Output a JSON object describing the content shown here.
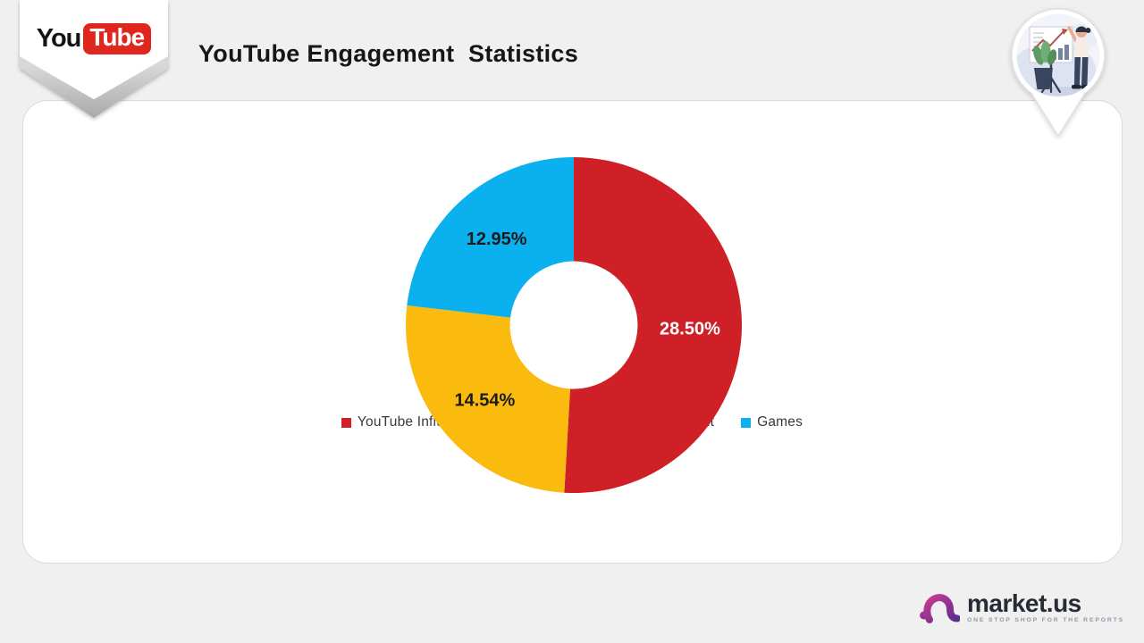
{
  "page": {
    "background": "#f0f0f0"
  },
  "header": {
    "title": "YouTube Engagement  Statistics",
    "badge": {
      "you": "You",
      "tube": "Tube",
      "tube_bg": "#e0271d"
    }
  },
  "chart_data": {
    "type": "pie",
    "subtype": "donut",
    "title": "YouTube Engagement Statistics",
    "series": [
      {
        "name": "YouTube Influencers sharing videos",
        "value": 28.5,
        "label": "28.50%",
        "color": "#ce2026",
        "label_color": "#ffffff"
      },
      {
        "name": "Entertainment",
        "value": 14.54,
        "label": "14.54%",
        "color": "#fbbb0e",
        "label_color": "#1b1b1b"
      },
      {
        "name": "Games",
        "value": 12.95,
        "label": "12.95%",
        "color": "#0bb0ef",
        "label_color": "#1b1b1b"
      }
    ],
    "start_angle_deg": 0,
    "clockwise": true,
    "inner_radius_ratio": 0.38,
    "outer_radius_px": 188,
    "label_radius_px": 130,
    "legend_position": "bottom"
  },
  "footer": {
    "brand": "market.us",
    "tagline": "ONE STOP SHOP FOR THE REPORTS",
    "brand_gradient": {
      "start": "#c93a94",
      "end": "#5b2d8e"
    },
    "brand_text_color": "#262b36"
  }
}
